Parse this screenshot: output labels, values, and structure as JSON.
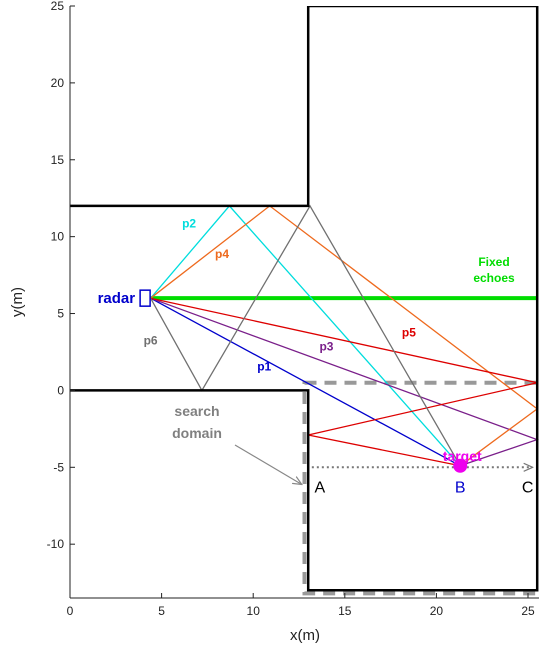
{
  "chart_data": {
    "type": "line",
    "title": "",
    "xlabel": "x(m)",
    "ylabel": "y(m)",
    "xlim": [
      0,
      25.6
    ],
    "ylim": [
      -13.5,
      25
    ],
    "xticks": [
      0,
      5,
      10,
      15,
      20,
      25
    ],
    "yticks": [
      25,
      20,
      15,
      10,
      5,
      0,
      -5,
      -10
    ],
    "grid": false,
    "walls": [
      {
        "points": [
          [
            0,
            12
          ],
          [
            13,
            12
          ],
          [
            13,
            25
          ],
          [
            25.5,
            25
          ],
          [
            25.5,
            -13
          ],
          [
            13,
            -13
          ],
          [
            13,
            0
          ],
          [
            0,
            0
          ]
        ]
      }
    ],
    "search_domain": {
      "x": [
        12.8,
        25.9
      ],
      "y": [
        -13.2,
        0.5
      ],
      "color": "#999999"
    },
    "fixed_echoes": {
      "label_line1": "Fixed",
      "label_line2": "echoes",
      "y": 6,
      "x": [
        4.4,
        25.5
      ],
      "color": "#00dd00"
    },
    "radar": {
      "label": "radar",
      "x": 4.1,
      "y": 6,
      "color": "#0000cc"
    },
    "target": {
      "label": "target",
      "x": 21.3,
      "y": -4.9,
      "color": "#ee00ee"
    },
    "search_line": {
      "from": [
        13.2,
        -5
      ],
      "to": [
        25.2,
        -5
      ],
      "color": "#777777"
    },
    "points": [
      {
        "label": "A",
        "x": 13.2,
        "y": -5,
        "color": "#000000"
      },
      {
        "label": "B",
        "x": 21.3,
        "y": -5,
        "color": "#0000cc"
      },
      {
        "label": "C",
        "x": 25.2,
        "y": -5,
        "color": "#000000"
      }
    ],
    "search_label": {
      "line1": "search",
      "line2": "domain",
      "color": "#808080"
    },
    "paths": [
      {
        "name": "p1",
        "color": "#0000cc",
        "points": [
          [
            4.4,
            6
          ],
          [
            21.3,
            -4.9
          ]
        ],
        "label": {
          "x": 10.6,
          "y": 1.3
        }
      },
      {
        "name": "p2",
        "color": "#00dddd",
        "points": [
          [
            4.4,
            6
          ],
          [
            8.7,
            12
          ],
          [
            21.3,
            -4.9
          ]
        ],
        "label": {
          "x": 6.5,
          "y": 10.6
        }
      },
      {
        "name": "p3",
        "color": "#7a1f8a",
        "points": [
          [
            4.4,
            6
          ],
          [
            25.5,
            -3.2
          ],
          [
            21.3,
            -4.9
          ]
        ],
        "label": {
          "x": 14.0,
          "y": 2.6
        }
      },
      {
        "name": "p4",
        "color": "#ee6a1e",
        "points": [
          [
            4.4,
            6
          ],
          [
            10.9,
            12
          ],
          [
            25.5,
            -1.2
          ],
          [
            21.3,
            -4.9
          ]
        ],
        "label": {
          "x": 8.3,
          "y": 8.6
        }
      },
      {
        "name": "p5",
        "color": "#dd0000",
        "points": [
          [
            4.4,
            6
          ],
          [
            25.5,
            0.5
          ],
          [
            13,
            -2.9
          ],
          [
            21.3,
            -4.9
          ]
        ],
        "label": {
          "x": 18.5,
          "y": 3.5
        }
      },
      {
        "name": "p6",
        "color": "#707070",
        "points": [
          [
            4.4,
            6
          ],
          [
            7.2,
            0
          ],
          [
            13.1,
            12
          ],
          [
            21.3,
            -4.9
          ]
        ],
        "label": {
          "x": 4.4,
          "y": 3.0
        }
      }
    ]
  }
}
